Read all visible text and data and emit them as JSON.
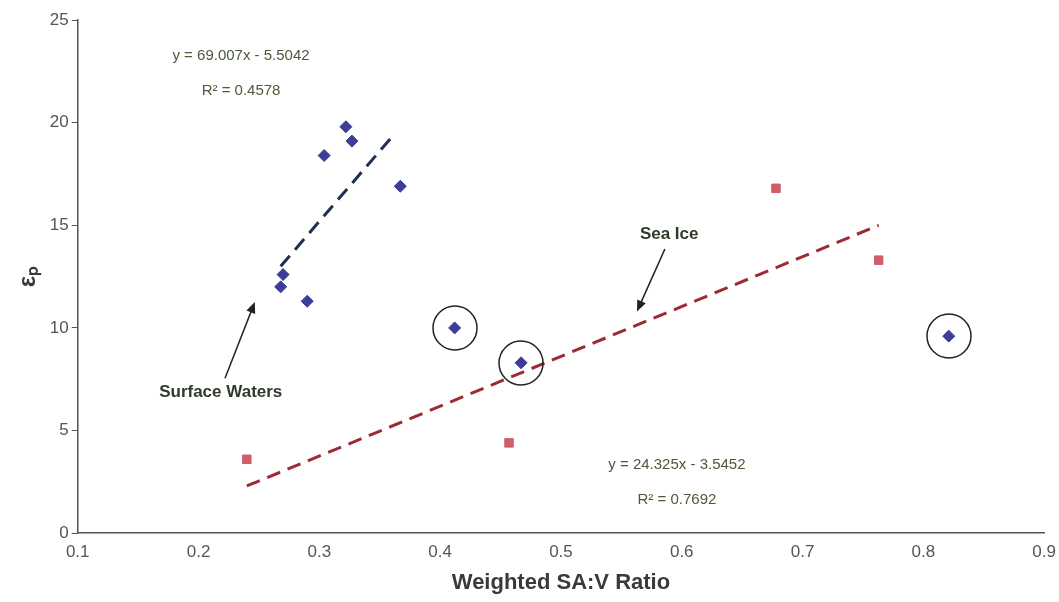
{
  "chart_data": {
    "type": "scatter",
    "xlabel": "Weighted SA:V Ratio",
    "ylabel": "εₚ",
    "xlim": [
      0.1,
      0.9
    ],
    "xticks": [
      0.1,
      0.2,
      0.3,
      0.4,
      0.5,
      0.6,
      0.7,
      0.8,
      0.9
    ],
    "ylim": [
      0,
      25
    ],
    "yticks": [
      0,
      5,
      10,
      15,
      20,
      25
    ],
    "grid": false,
    "legend": false,
    "series": [
      {
        "marker": "diamond",
        "color": "#3d3d99",
        "x": [
          0.322,
          0.327,
          0.304,
          0.367,
          0.27,
          0.268,
          0.29
        ],
        "values": [
          19.8,
          19.1,
          18.4,
          16.9,
          12.6,
          12.0,
          11.3
        ]
      },
      {
        "marker": "square",
        "color": "#cc5f6a",
        "x": [
          0.24,
          0.457,
          0.678,
          0.763
        ],
        "values": [
          3.6,
          4.4,
          16.8,
          13.3
        ]
      },
      {
        "marker": "diamond",
        "color": "#3d3d99",
        "x": [
          0.412,
          0.467,
          0.821
        ],
        "values": [
          10.0,
          8.3,
          9.6
        ]
      },
      {
        "type": "line",
        "marker": "none",
        "line_style": "dashed",
        "color": "#1f3050",
        "x": [
          0.268,
          0.36
        ],
        "values": [
          13.0,
          19.3
        ]
      },
      {
        "type": "line",
        "marker": "none",
        "line_style": "dashed",
        "color": "#9e2a35",
        "x": [
          0.24,
          0.763
        ],
        "values": [
          2.3,
          15.0
        ]
      }
    ],
    "annotations": [
      "y = 69.007x - 5.5042",
      "R² = 0.4578",
      "y = 24.325x - 3.5452",
      "R² = 0.7692",
      "Surface Waters",
      "Sea Ice"
    ]
  }
}
